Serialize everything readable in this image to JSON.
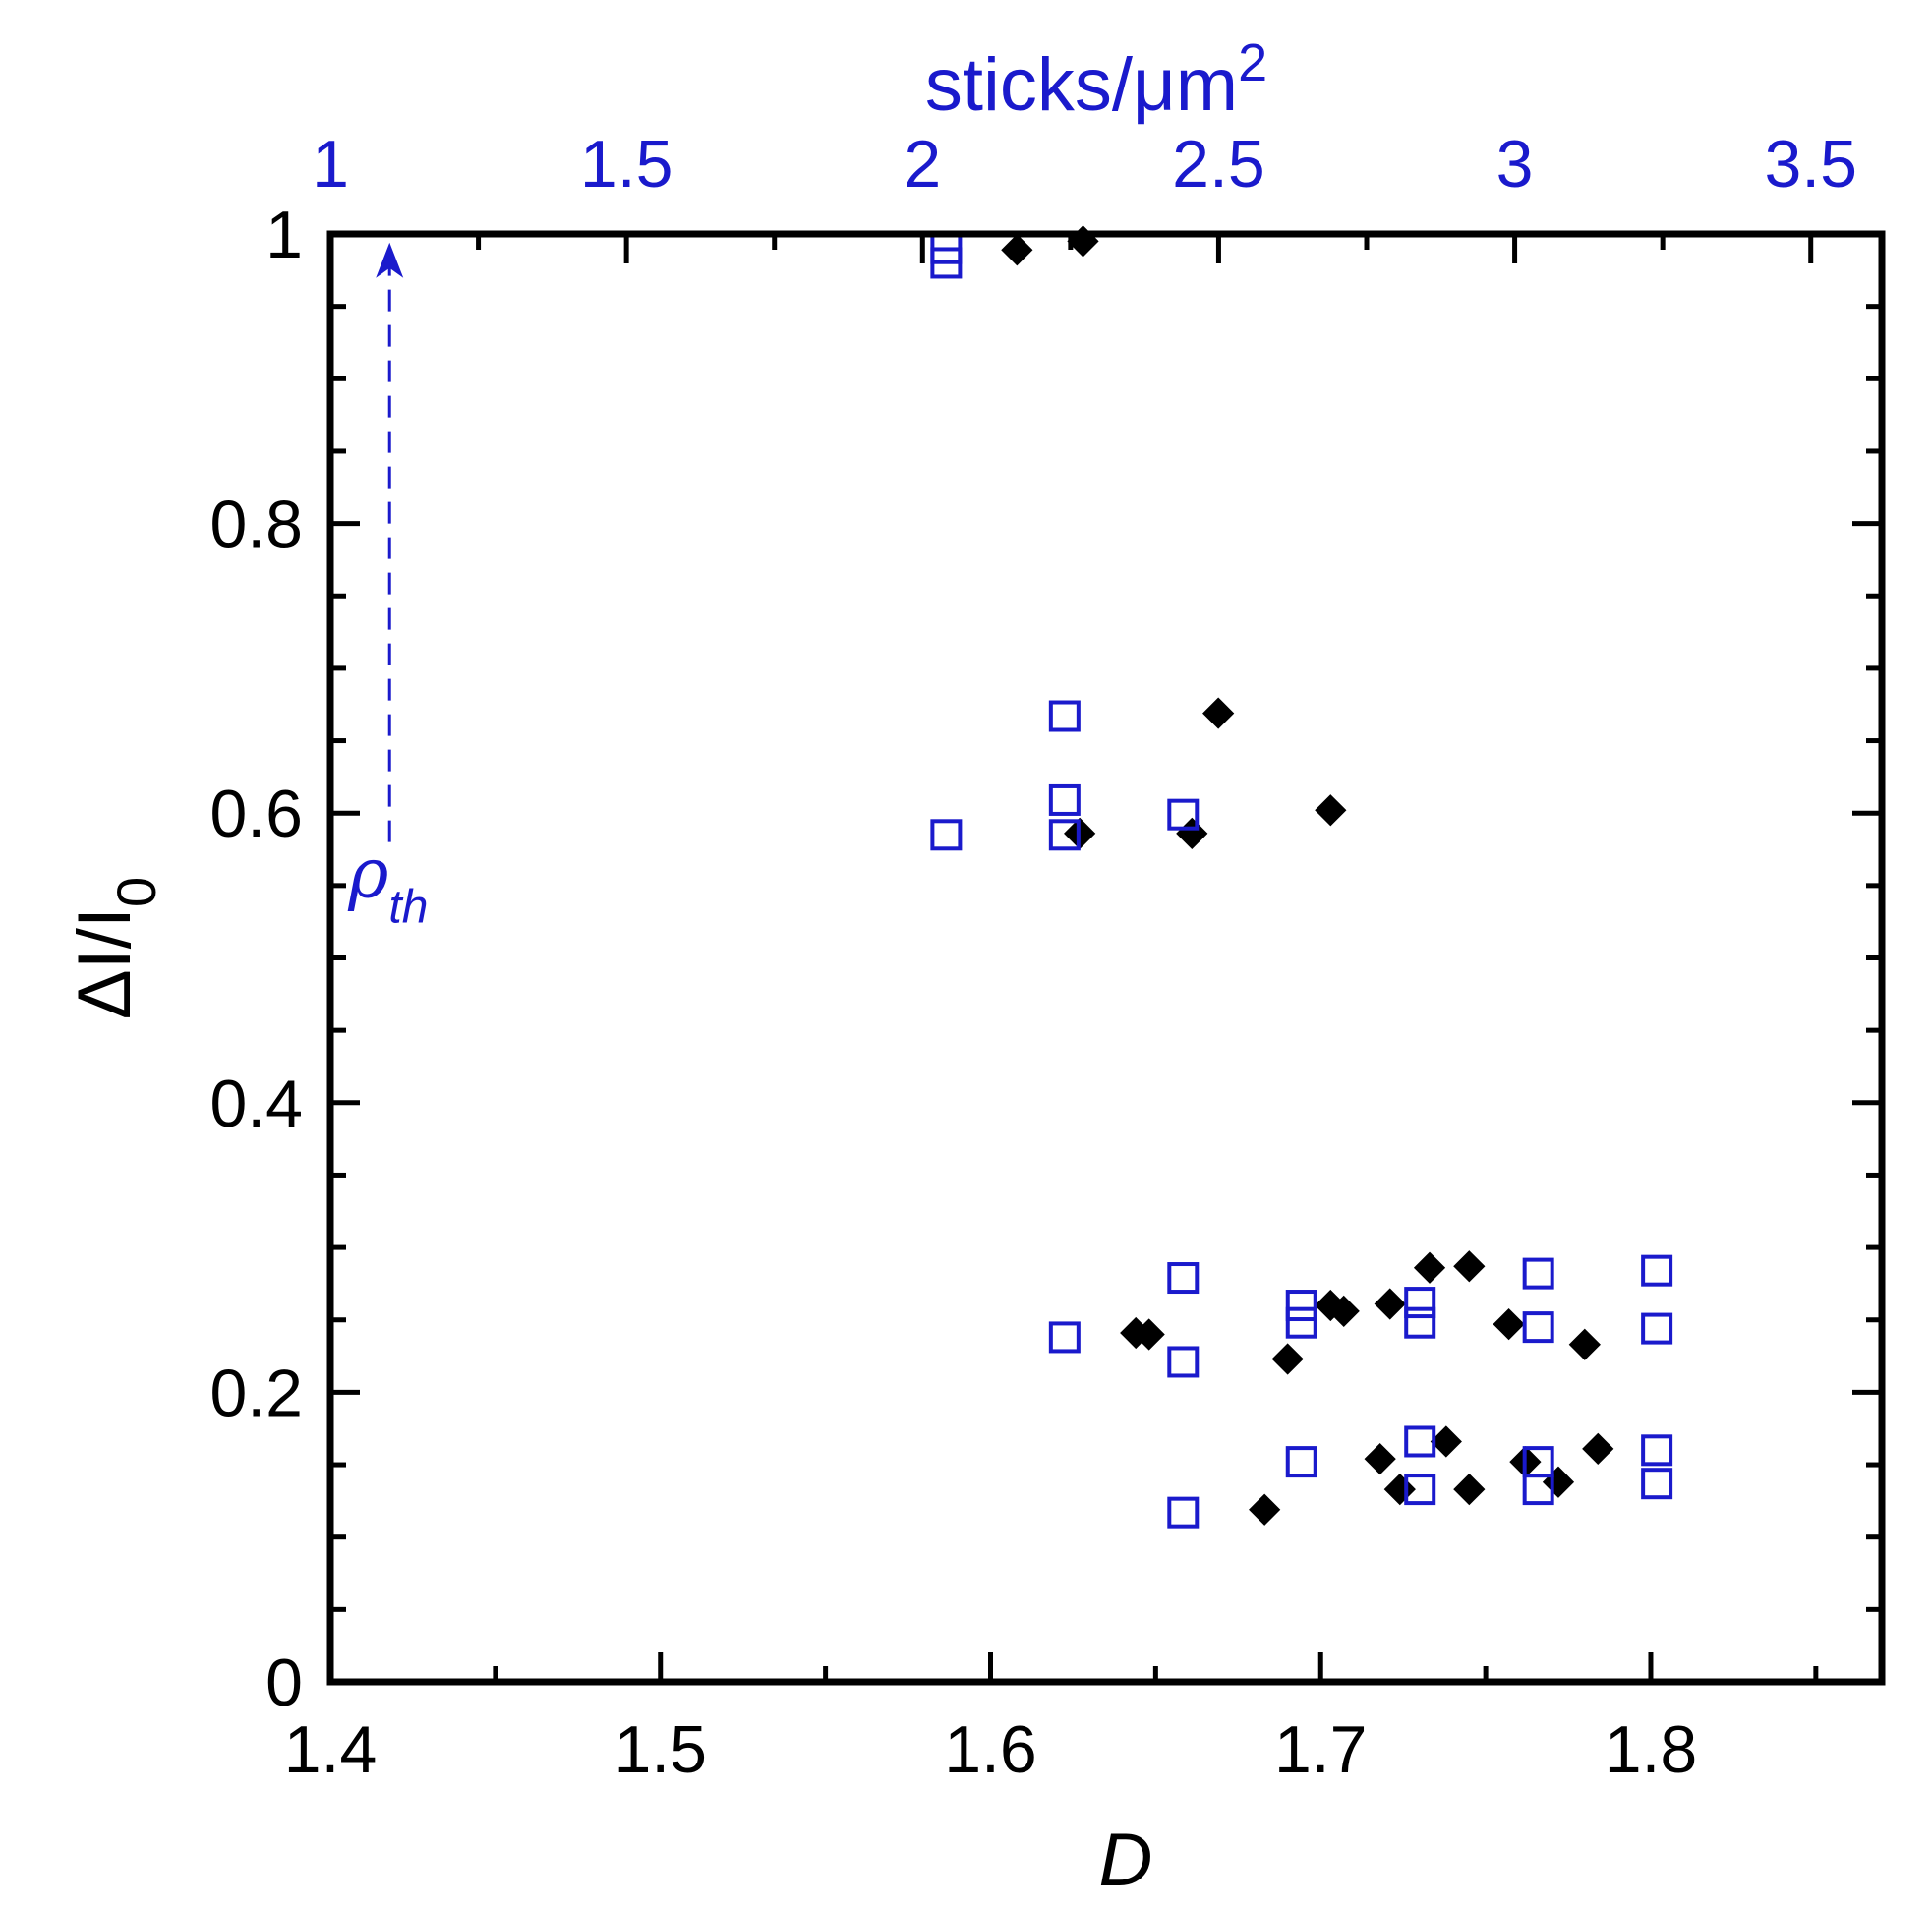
{
  "chart_data": {
    "type": "scatter",
    "xlabel": "D",
    "ylabel_main": "ΔI/I",
    "ylabel_sub": "0",
    "top_xlabel_main": "sticks/μm",
    "top_xlabel_sup": "2",
    "xlim": [
      1.4,
      1.87
    ],
    "ylim": [
      0,
      1.0
    ],
    "top_xlim": [
      1.0,
      3.62
    ],
    "x_ticks": [
      "1.4",
      "1.5",
      "1.6",
      "1.7",
      "1.8"
    ],
    "x_tick_values": [
      1.4,
      1.5,
      1.6,
      1.7,
      1.8
    ],
    "y_ticks": [
      "0",
      "0.2",
      "0.4",
      "0.6",
      "0.8",
      "1"
    ],
    "y_tick_values": [
      0,
      0.2,
      0.4,
      0.6,
      0.8,
      1.0
    ],
    "top_ticks": [
      "1",
      "1.5",
      "2",
      "2.5",
      "3",
      "3.5"
    ],
    "top_tick_values": [
      1.0,
      1.5,
      2.0,
      2.5,
      3.0,
      3.5
    ],
    "annotation": {
      "symbol": "ρ",
      "subscript": "th",
      "x_top": 1.1,
      "y_from": 0.58,
      "y_to": 0.99
    },
    "colors": {
      "diamond": "#000000",
      "square": "#1a1acc",
      "axis": "#000000",
      "top_axis": "#1a1acc"
    },
    "series": [
      {
        "marker": "filled-diamond",
        "axis": "bottom",
        "points": [
          [
            1.608,
            0.989
          ],
          [
            1.628,
            0.995
          ],
          [
            1.669,
            0.669
          ],
          [
            1.703,
            0.602
          ],
          [
            1.627,
            0.586
          ],
          [
            1.661,
            0.586
          ],
          [
            1.745,
            0.287
          ],
          [
            1.733,
            0.286
          ],
          [
            1.703,
            0.26
          ],
          [
            1.707,
            0.256
          ],
          [
            1.721,
            0.261
          ],
          [
            1.757,
            0.247
          ],
          [
            1.648,
            0.24
          ],
          [
            1.644,
            0.241
          ],
          [
            1.69,
            0.223
          ],
          [
            1.78,
            0.233
          ],
          [
            1.738,
            0.166
          ],
          [
            1.784,
            0.161
          ],
          [
            1.762,
            0.152
          ],
          [
            1.718,
            0.154
          ],
          [
            1.772,
            0.138
          ],
          [
            1.724,
            0.133
          ],
          [
            1.745,
            0.133
          ],
          [
            1.683,
            0.119
          ]
        ]
      },
      {
        "marker": "open-square",
        "axis": "top",
        "points": [
          [
            2.04,
            0.99
          ],
          [
            2.04,
            0.98
          ],
          [
            2.24,
            0.667
          ],
          [
            2.24,
            0.609
          ],
          [
            2.24,
            0.585
          ],
          [
            2.04,
            0.585
          ],
          [
            2.44,
            0.599
          ],
          [
            2.44,
            0.279
          ],
          [
            2.44,
            0.221
          ],
          [
            2.24,
            0.238
          ],
          [
            2.64,
            0.26
          ],
          [
            2.64,
            0.248
          ],
          [
            2.64,
            0.152
          ],
          [
            2.84,
            0.262
          ],
          [
            2.84,
            0.248
          ],
          [
            2.84,
            0.166
          ],
          [
            2.84,
            0.133
          ],
          [
            3.04,
            0.282
          ],
          [
            3.04,
            0.245
          ],
          [
            3.04,
            0.152
          ],
          [
            3.04,
            0.133
          ],
          [
            3.24,
            0.284
          ],
          [
            3.24,
            0.244
          ],
          [
            3.24,
            0.16
          ],
          [
            3.24,
            0.137
          ],
          [
            2.44,
            0.117
          ]
        ]
      }
    ]
  }
}
